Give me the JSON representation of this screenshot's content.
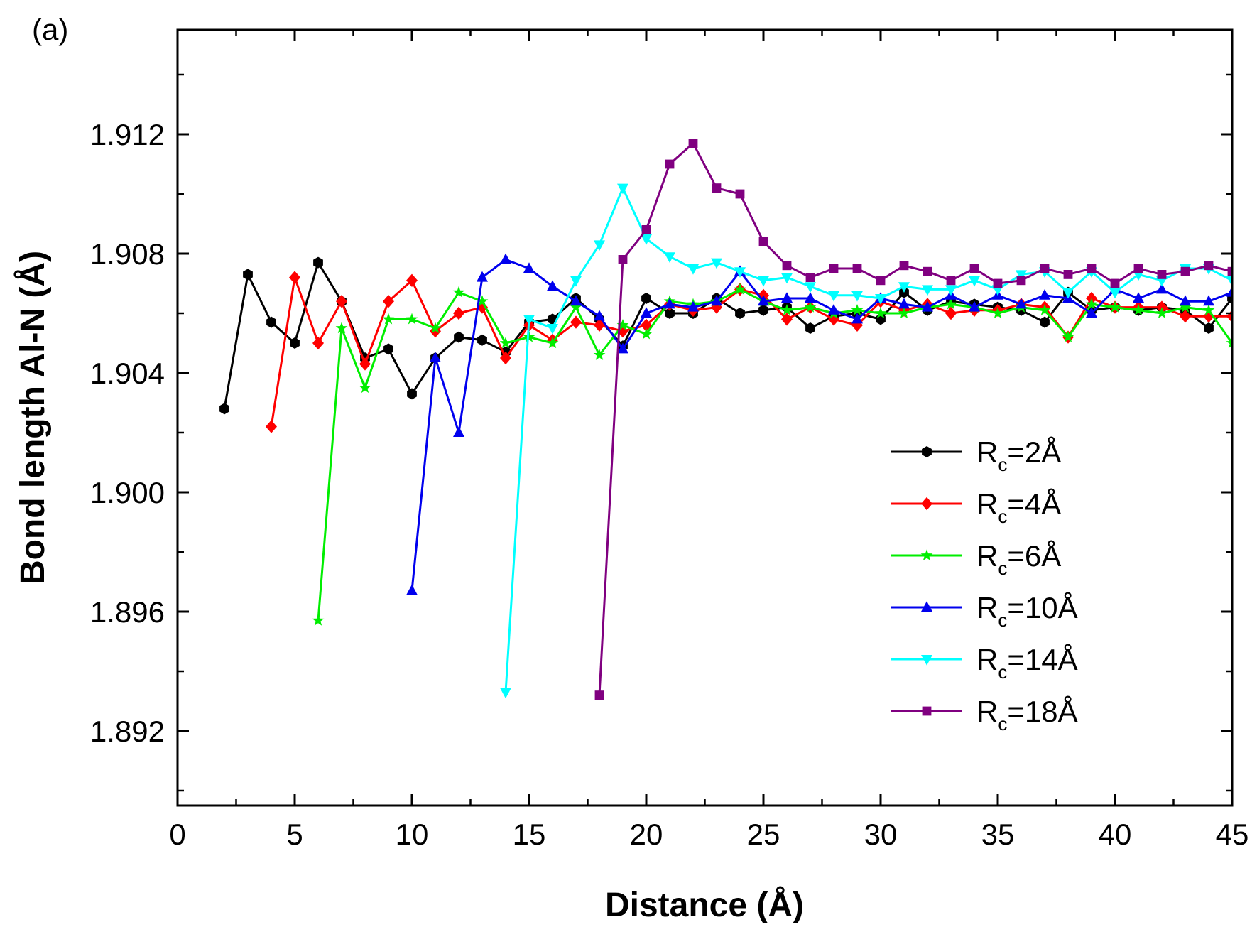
{
  "chart_data": {
    "type": "line",
    "panel_label": "(a)",
    "title": "",
    "xlabel": "Distance (Å)",
    "ylabel": "Bond length Al-N (Å)",
    "xlim": [
      0,
      45
    ],
    "ylim": [
      1.8895,
      1.9155
    ],
    "xticks": [
      0,
      5,
      10,
      15,
      20,
      25,
      30,
      35,
      40,
      45
    ],
    "xtick_labels": [
      "0",
      "5",
      "10",
      "15",
      "20",
      "25",
      "30",
      "35",
      "40",
      "45"
    ],
    "yticks": [
      1.892,
      1.896,
      1.9,
      1.904,
      1.908,
      1.912
    ],
    "ytick_labels": [
      "1.892",
      "1.896",
      "1.900",
      "1.904",
      "1.908",
      "1.912"
    ],
    "grid": false,
    "legend_position": "center-right",
    "series": [
      {
        "name": "Rc=2Å",
        "label_main": "R",
        "label_sub": "c",
        "label_rest": "=2Å",
        "color": "#000000",
        "marker": "hexagon",
        "x": [
          2,
          3,
          4,
          5,
          6,
          7,
          8,
          9,
          10,
          11,
          12,
          13,
          14,
          15,
          16,
          17,
          18,
          19,
          20,
          21,
          22,
          23,
          24,
          25,
          26,
          27,
          28,
          29,
          30,
          31,
          32,
          33,
          34,
          35,
          36,
          37,
          38,
          39,
          40,
          41,
          42,
          43,
          44,
          45
        ],
        "y": [
          1.9028,
          1.9073,
          1.9057,
          1.905,
          1.9077,
          1.9064,
          1.9045,
          1.9048,
          1.9033,
          1.9045,
          1.9052,
          1.9051,
          1.9047,
          1.9057,
          1.9058,
          1.9065,
          1.9058,
          1.9049,
          1.9065,
          1.906,
          1.906,
          1.9065,
          1.906,
          1.9061,
          1.9062,
          1.9055,
          1.9059,
          1.906,
          1.9058,
          1.9067,
          1.9061,
          1.9064,
          1.9063,
          1.9062,
          1.9061,
          1.9057,
          1.9067,
          1.9061,
          1.9062,
          1.9061,
          1.9062,
          1.9061,
          1.9055,
          1.9065
        ]
      },
      {
        "name": "Rc=4Å",
        "label_main": "R",
        "label_sub": "c",
        "label_rest": "=4Å",
        "color": "#ff0000",
        "marker": "diamond",
        "x": [
          4,
          5,
          6,
          7,
          8,
          9,
          10,
          11,
          12,
          13,
          14,
          15,
          16,
          17,
          18,
          19,
          20,
          21,
          22,
          23,
          24,
          25,
          26,
          27,
          28,
          29,
          30,
          31,
          32,
          33,
          34,
          35,
          36,
          37,
          38,
          39,
          40,
          41,
          42,
          43,
          44,
          45
        ],
        "y": [
          1.9022,
          1.9072,
          1.905,
          1.9064,
          1.9043,
          1.9064,
          1.9071,
          1.9054,
          1.906,
          1.9062,
          1.9045,
          1.9056,
          1.9051,
          1.9057,
          1.9056,
          1.9054,
          1.9056,
          1.9063,
          1.9061,
          1.9062,
          1.9068,
          1.9066,
          1.9058,
          1.9062,
          1.9058,
          1.9056,
          1.9064,
          1.9061,
          1.9063,
          1.906,
          1.9061,
          1.9061,
          1.9063,
          1.9062,
          1.9052,
          1.9065,
          1.9062,
          1.9062,
          1.9062,
          1.9059,
          1.9059,
          1.9059
        ]
      },
      {
        "name": "Rc=6Å",
        "label_main": "R",
        "label_sub": "c",
        "label_rest": "=6Å",
        "color": "#00ee00",
        "marker": "star",
        "x": [
          6,
          7,
          8,
          9,
          10,
          11,
          12,
          13,
          14,
          15,
          16,
          17,
          18,
          19,
          20,
          21,
          22,
          23,
          24,
          25,
          26,
          27,
          28,
          29,
          30,
          31,
          32,
          33,
          34,
          35,
          36,
          37,
          38,
          39,
          40,
          41,
          42,
          43,
          44,
          45
        ],
        "y": [
          1.8957,
          1.9055,
          1.9035,
          1.9058,
          1.9058,
          1.9055,
          1.9067,
          1.9064,
          1.905,
          1.9052,
          1.905,
          1.9062,
          1.9046,
          1.9056,
          1.9053,
          1.9064,
          1.9063,
          1.9064,
          1.9068,
          1.9064,
          1.9061,
          1.9062,
          1.906,
          1.9061,
          1.906,
          1.906,
          1.9062,
          1.9063,
          1.9062,
          1.906,
          1.9062,
          1.9061,
          1.9052,
          1.9063,
          1.9062,
          1.9061,
          1.906,
          1.9062,
          1.9061,
          1.905
        ]
      },
      {
        "name": "Rc=10Å",
        "label_main": "R",
        "label_sub": "c",
        "label_rest": "=10Å",
        "color": "#0000ee",
        "marker": "triangle-up",
        "x": [
          10,
          11,
          12,
          13,
          14,
          15,
          16,
          17,
          18,
          19,
          20,
          21,
          22,
          23,
          24,
          25,
          26,
          27,
          28,
          29,
          30,
          31,
          32,
          33,
          34,
          35,
          36,
          37,
          38,
          39,
          40,
          41,
          42,
          43,
          44,
          45
        ],
        "y": [
          1.8967,
          1.9045,
          1.902,
          1.9072,
          1.9078,
          1.9075,
          1.9069,
          1.9064,
          1.9059,
          1.9048,
          1.906,
          1.9063,
          1.9062,
          1.9064,
          1.9074,
          1.9064,
          1.9065,
          1.9065,
          1.9061,
          1.9058,
          1.9065,
          1.9063,
          1.9062,
          1.9066,
          1.9062,
          1.9066,
          1.9063,
          1.9066,
          1.9065,
          1.906,
          1.9068,
          1.9065,
          1.9068,
          1.9064,
          1.9064,
          1.9067
        ]
      },
      {
        "name": "Rc=14Å",
        "label_main": "R",
        "label_sub": "c",
        "label_rest": "=14Å",
        "color": "#00ffff",
        "marker": "triangle-down",
        "x": [
          14,
          15,
          16,
          17,
          18,
          19,
          20,
          21,
          22,
          23,
          24,
          25,
          26,
          27,
          28,
          29,
          30,
          31,
          32,
          33,
          34,
          35,
          36,
          37,
          38,
          39,
          40,
          41,
          42,
          43,
          44,
          45
        ],
        "y": [
          1.8933,
          1.9058,
          1.9055,
          1.9071,
          1.9083,
          1.9102,
          1.9085,
          1.9079,
          1.9075,
          1.9077,
          1.9074,
          1.9071,
          1.9072,
          1.9069,
          1.9066,
          1.9066,
          1.9065,
          1.9069,
          1.9068,
          1.9068,
          1.9071,
          1.9068,
          1.9073,
          1.9074,
          1.9067,
          1.9074,
          1.9067,
          1.9073,
          1.9071,
          1.9075,
          1.9075,
          1.9071
        ]
      },
      {
        "name": "Rc=18Å",
        "label_main": "R",
        "label_sub": "c",
        "label_rest": "=18Å",
        "color": "#800080",
        "marker": "square",
        "x": [
          18,
          19,
          20,
          21,
          22,
          23,
          24,
          25,
          26,
          27,
          28,
          29,
          30,
          31,
          32,
          33,
          34,
          35,
          36,
          37,
          38,
          39,
          40,
          41,
          42,
          43,
          44,
          45
        ],
        "y": [
          1.8932,
          1.9078,
          1.9088,
          1.911,
          1.9117,
          1.9102,
          1.91,
          1.9084,
          1.9076,
          1.9072,
          1.9075,
          1.9075,
          1.9071,
          1.9076,
          1.9074,
          1.9071,
          1.9075,
          1.907,
          1.9071,
          1.9075,
          1.9073,
          1.9075,
          1.907,
          1.9075,
          1.9073,
          1.9074,
          1.9076,
          1.9074
        ]
      }
    ]
  }
}
